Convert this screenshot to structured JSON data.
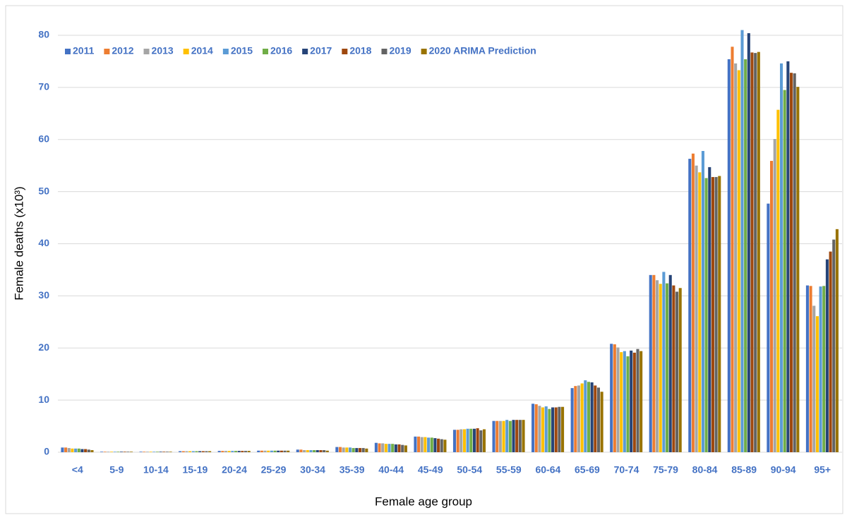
{
  "chart_data": {
    "type": "bar",
    "categories": [
      "<4",
      "5-9",
      "10-14",
      "15-19",
      "20-24",
      "25-29",
      "30-34",
      "35-39",
      "40-44",
      "45-49",
      "50-54",
      "55-59",
      "60-64",
      "65-69",
      "70-74",
      "75-79",
      "80-84",
      "85-89",
      "90-94",
      "95+"
    ],
    "xlabel": "Female age group",
    "ylabel": "Female deaths (x10³)",
    "ylim": [
      0,
      80
    ],
    "yticks": [
      0,
      10,
      20,
      30,
      40,
      50,
      60,
      70,
      80
    ],
    "grid": true,
    "legend": "top-left",
    "series": [
      {
        "name": "2011",
        "color": "#4472c4",
        "values": [
          0.9,
          0.1,
          0.1,
          0.2,
          0.25,
          0.3,
          0.5,
          1.0,
          1.8,
          3.0,
          4.3,
          6.0,
          9.3,
          12.3,
          20.8,
          34.0,
          56.3,
          75.4,
          47.7,
          32.0
        ]
      },
      {
        "name": "2012",
        "color": "#ed7d31",
        "values": [
          0.9,
          0.1,
          0.1,
          0.2,
          0.25,
          0.3,
          0.5,
          1.0,
          1.7,
          3.0,
          4.3,
          6.0,
          9.2,
          12.7,
          20.7,
          34.0,
          57.3,
          77.8,
          55.9,
          31.9
        ]
      },
      {
        "name": "2013",
        "color": "#a5a5a5",
        "values": [
          0.8,
          0.1,
          0.1,
          0.2,
          0.25,
          0.3,
          0.4,
          0.9,
          1.7,
          2.9,
          4.4,
          6.0,
          8.9,
          12.8,
          20.1,
          33.0,
          55.0,
          74.6,
          60.1,
          28.1
        ]
      },
      {
        "name": "2014",
        "color": "#ffc000",
        "values": [
          0.7,
          0.1,
          0.1,
          0.2,
          0.25,
          0.3,
          0.4,
          0.9,
          1.6,
          2.9,
          4.4,
          6.0,
          8.6,
          13.2,
          19.2,
          32.3,
          53.7,
          73.3,
          65.7,
          26.1
        ]
      },
      {
        "name": "2015",
        "color": "#5b9bd5",
        "values": [
          0.7,
          0.1,
          0.1,
          0.2,
          0.25,
          0.3,
          0.4,
          0.9,
          1.6,
          2.8,
          4.5,
          6.2,
          8.8,
          13.8,
          19.4,
          34.6,
          57.8,
          81.0,
          74.6,
          31.8
        ]
      },
      {
        "name": "2016",
        "color": "#70ad47",
        "values": [
          0.7,
          0.1,
          0.1,
          0.2,
          0.25,
          0.3,
          0.4,
          0.8,
          1.6,
          2.8,
          4.5,
          6.0,
          8.3,
          13.5,
          18.4,
          32.4,
          52.6,
          75.4,
          69.5,
          31.9
        ]
      },
      {
        "name": "2017",
        "color": "#264478",
        "values": [
          0.6,
          0.1,
          0.1,
          0.2,
          0.25,
          0.3,
          0.4,
          0.8,
          1.5,
          2.7,
          4.5,
          6.2,
          8.6,
          13.4,
          19.5,
          34.0,
          54.7,
          80.4,
          75.0,
          37.0
        ]
      },
      {
        "name": "2018",
        "color": "#9e480e",
        "values": [
          0.6,
          0.1,
          0.1,
          0.2,
          0.25,
          0.3,
          0.4,
          0.8,
          1.5,
          2.6,
          4.6,
          6.2,
          8.6,
          12.8,
          19.1,
          32.0,
          52.8,
          76.7,
          72.8,
          38.5
        ]
      },
      {
        "name": "2019",
        "color": "#636363",
        "values": [
          0.5,
          0.1,
          0.1,
          0.2,
          0.25,
          0.3,
          0.4,
          0.8,
          1.4,
          2.5,
          4.2,
          6.2,
          8.7,
          12.4,
          19.8,
          30.8,
          52.8,
          76.6,
          72.7,
          40.8
        ]
      },
      {
        "name": "2020 ARIMA Prediction",
        "color": "#997300",
        "values": [
          0.4,
          0.1,
          0.1,
          0.2,
          0.25,
          0.3,
          0.3,
          0.7,
          1.3,
          2.4,
          4.4,
          6.2,
          8.7,
          11.6,
          19.4,
          31.5,
          53.0,
          76.8,
          70.1,
          42.8
        ]
      }
    ]
  }
}
